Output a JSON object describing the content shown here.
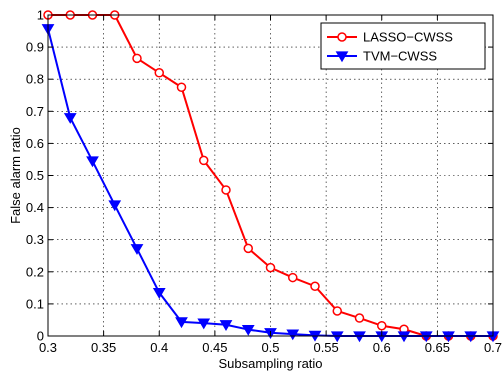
{
  "chart_data": {
    "type": "line",
    "title": "",
    "xlabel": "Subsampling ratio",
    "ylabel": "False alarm ratio",
    "xlim": [
      0.3,
      0.7
    ],
    "ylim": [
      0,
      1
    ],
    "xticks": [
      "0.3",
      "0.35",
      "0.4",
      "0.45",
      "0.5",
      "0.55",
      "0.6",
      "0.65",
      "0.7"
    ],
    "yticks": [
      "0",
      "0.1",
      "0.2",
      "0.3",
      "0.4",
      "0.5",
      "0.6",
      "0.7",
      "0.8",
      "0.9",
      "1"
    ],
    "grid": true,
    "legend_position": "top-right",
    "x": [
      0.3,
      0.32,
      0.34,
      0.36,
      0.38,
      0.4,
      0.42,
      0.44,
      0.46,
      0.48,
      0.5,
      0.52,
      0.54,
      0.56,
      0.58,
      0.6,
      0.62,
      0.64,
      0.66,
      0.68,
      0.7
    ],
    "series": [
      {
        "name": "LASSO−CWSS",
        "color": "#ff0000",
        "marker": "circle",
        "values": [
          1.0,
          1.0,
          1.0,
          1.0,
          0.865,
          0.82,
          0.775,
          0.547,
          0.455,
          0.273,
          0.213,
          0.182,
          0.155,
          0.078,
          0.056,
          0.032,
          0.021,
          0.0,
          0.0,
          0.0,
          0.0
        ]
      },
      {
        "name": "TVM−CWSS",
        "color": "#0000ff",
        "marker": "triangle-down",
        "values": [
          0.957,
          0.68,
          0.545,
          0.408,
          0.272,
          0.135,
          0.044,
          0.04,
          0.035,
          0.02,
          0.01,
          0.006,
          0.002,
          0.0,
          0.0,
          0.0,
          0.0,
          0.0,
          0.0,
          0.0,
          0.0
        ]
      }
    ]
  }
}
